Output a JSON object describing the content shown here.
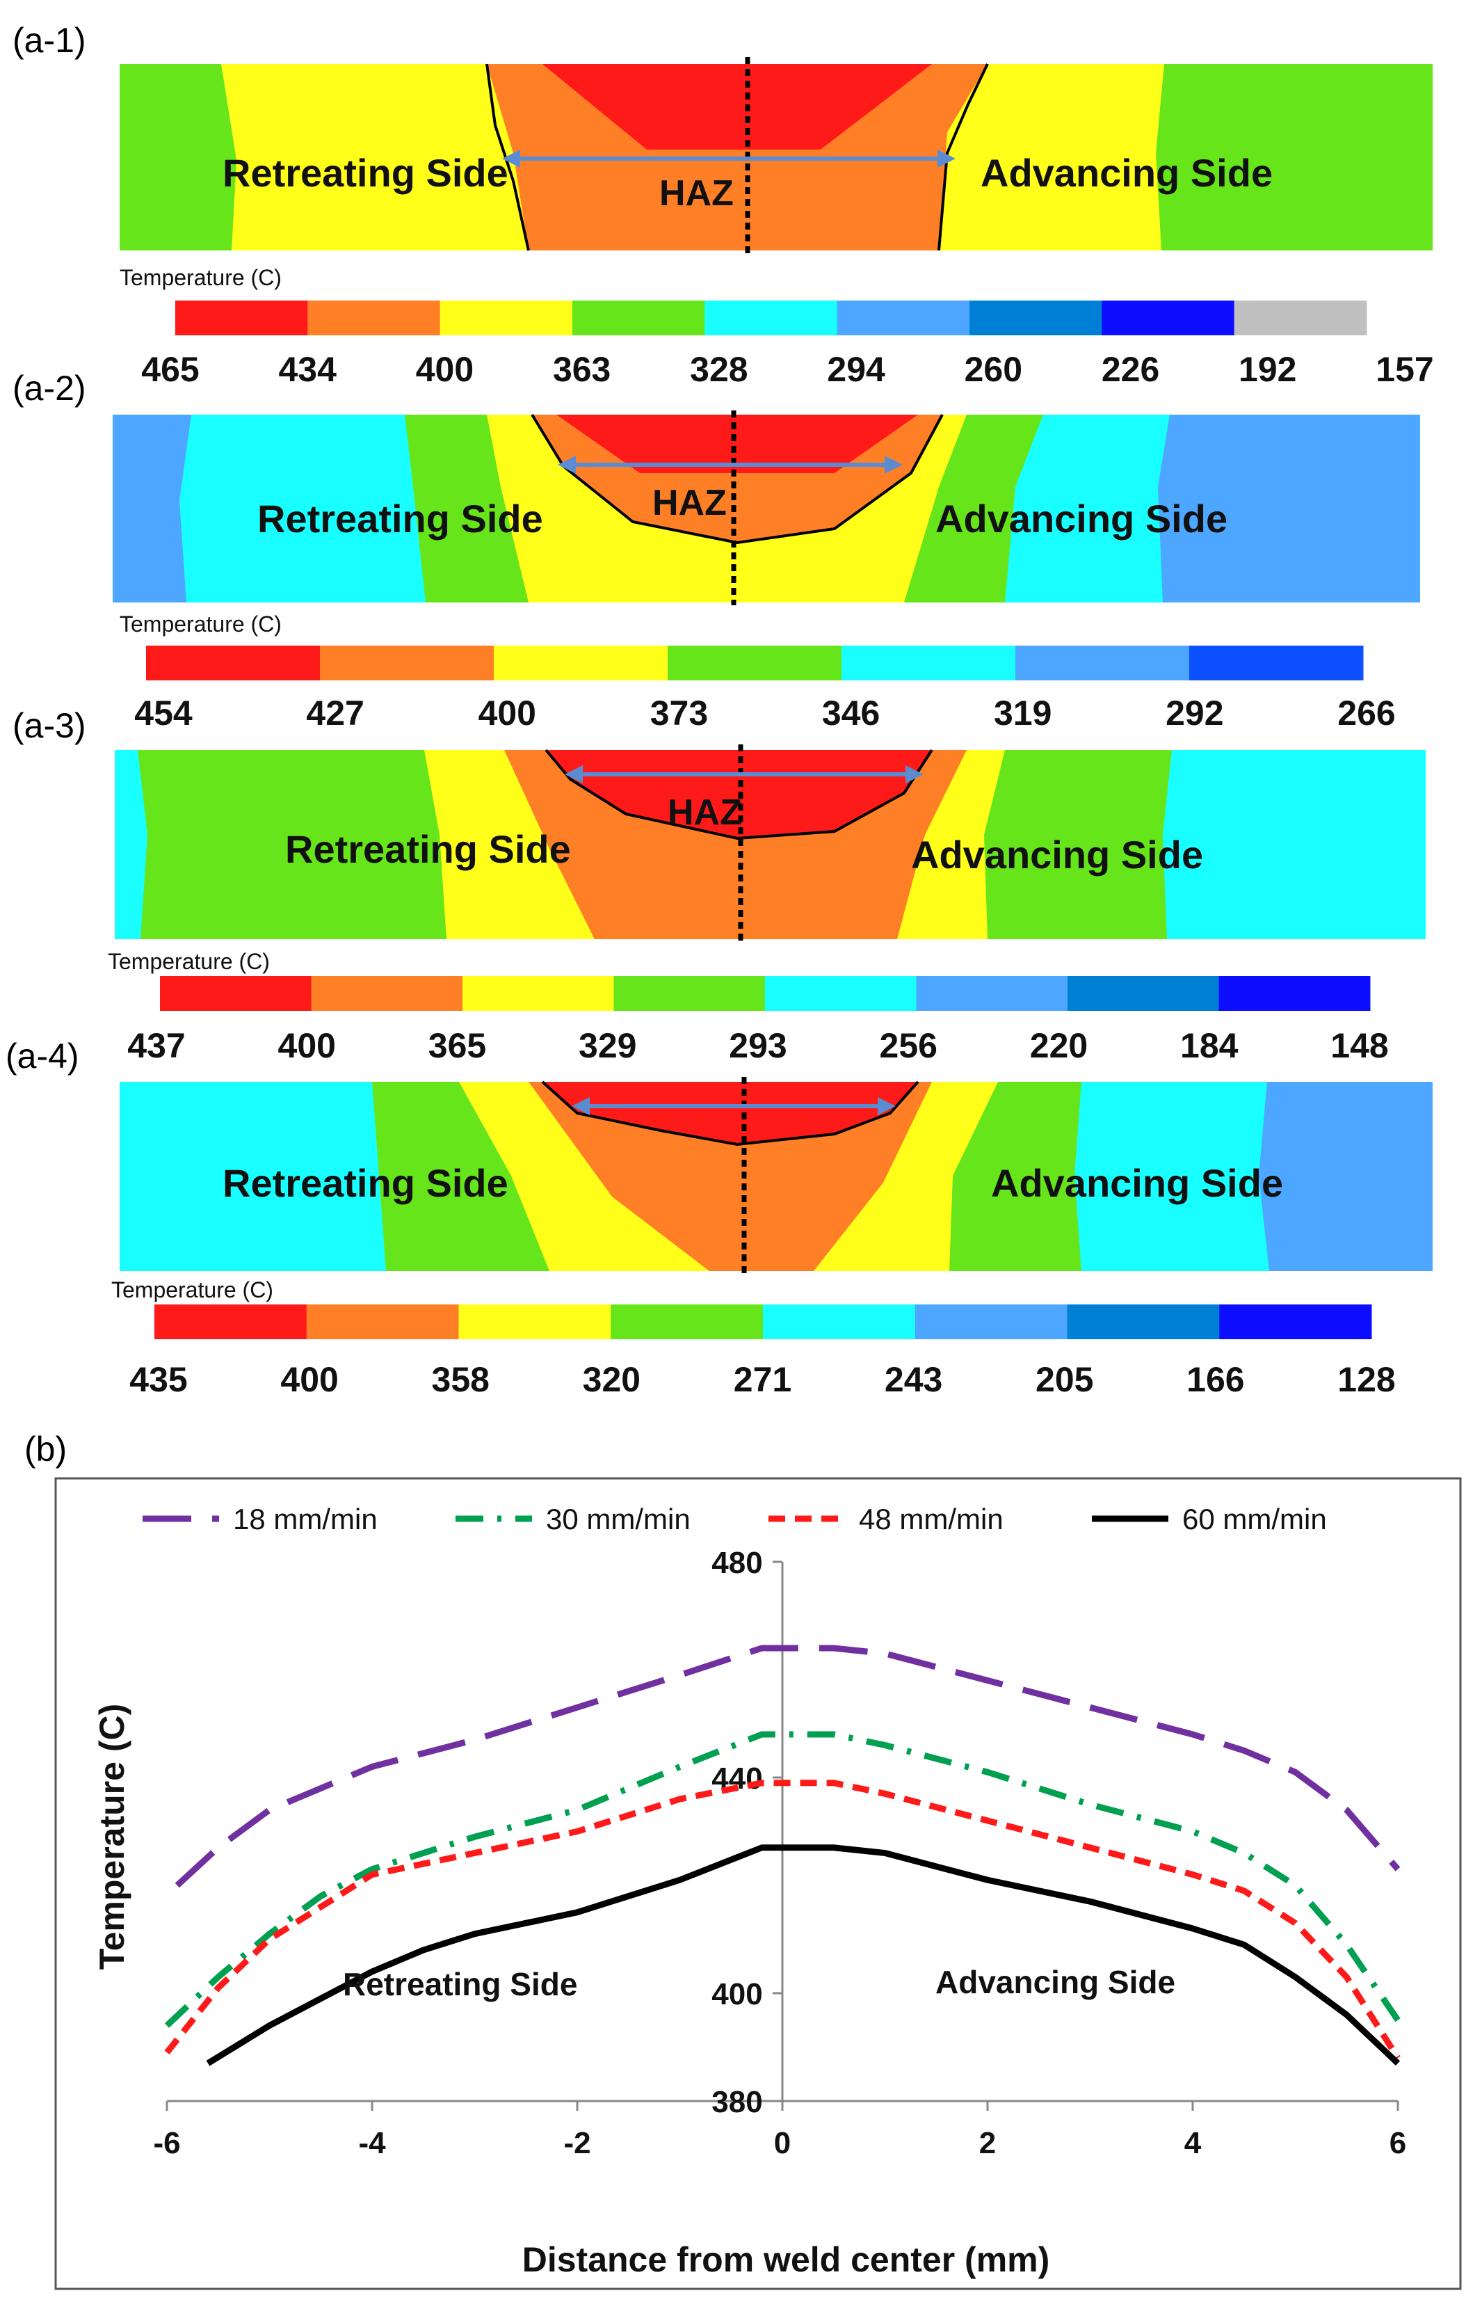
{
  "panel_labels": {
    "a1": "(a-1)",
    "a2": "(a-2)",
    "a3": "(a-3)",
    "a4": "(a-4)",
    "b": "(b)"
  },
  "contour_panels": [
    {
      "id": "a-1",
      "retreating_label": "Retreating Side",
      "advancing_label": "Advancing Side",
      "haz_label": "HAZ",
      "temperature_label": "Temperature (C)",
      "scale_values": [
        "465",
        "434",
        "400",
        "363",
        "328",
        "294",
        "260",
        "226",
        "192",
        "157"
      ],
      "scale_colors": [
        "#ff1a1a",
        "#ff7f27",
        "#ffff1a",
        "#66e61a",
        "#19ffff",
        "#4da6ff",
        "#0080d5",
        "#0d0dff",
        "#c0c0c0"
      ]
    },
    {
      "id": "a-2",
      "retreating_label": "Retreating Side",
      "advancing_label": "Advancing Side",
      "haz_label": "HAZ",
      "temperature_label": "Temperature (C)",
      "scale_values": [
        "454",
        "427",
        "400",
        "373",
        "346",
        "319",
        "292",
        "266"
      ],
      "scale_colors": [
        "#ff1a1a",
        "#ff7f27",
        "#ffff1a",
        "#66e61a",
        "#19ffff",
        "#4da6ff",
        "#0d50ff"
      ]
    },
    {
      "id": "a-3",
      "retreating_label": "Retreating Side",
      "advancing_label": "Advancing Side",
      "haz_label": "HAZ",
      "temperature_label": "Temperature (C)",
      "scale_values": [
        "437",
        "400",
        "365",
        "329",
        "293",
        "256",
        "220",
        "184",
        "148"
      ],
      "scale_colors": [
        "#ff1a1a",
        "#ff7f27",
        "#ffff1a",
        "#66e61a",
        "#19ffff",
        "#4da6ff",
        "#0080d5",
        "#0d0dff"
      ]
    },
    {
      "id": "a-4",
      "retreating_label": "Retreating Side",
      "advancing_label": "Advancing Side",
      "temperature_label": "Temperature (C)",
      "scale_values": [
        "435",
        "400",
        "358",
        "320",
        "271",
        "243",
        "205",
        "166",
        "128"
      ],
      "scale_colors": [
        "#ff1a1a",
        "#ff7f27",
        "#ffff1a",
        "#66e61a",
        "#19ffff",
        "#4da6ff",
        "#0080d5",
        "#0d0dff"
      ]
    }
  ],
  "colors": {
    "red": "#ff1a1a",
    "orange": "#ff7f27",
    "yellow": "#ffff1a",
    "green": "#66e61a",
    "cyan": "#19ffff",
    "light_blue": "#4da6ff",
    "arrow": "#5b8bd0",
    "series_18": "#7030a0",
    "series_30": "#00a050",
    "series_48": "#ff1a1a",
    "series_60": "#000000"
  },
  "chart_data": {
    "type": "line",
    "xlabel": "Distance from weld center (mm)",
    "ylabel": "Temperature (C)",
    "xlim": [
      -6,
      6
    ],
    "ylim": [
      380,
      480
    ],
    "xticks": [
      -6,
      -4,
      -2,
      0,
      2,
      4,
      6
    ],
    "yticks": [
      380,
      400,
      440,
      480
    ],
    "legend_position": "top",
    "annotations": {
      "left": "Retreating Side",
      "right": "Advancing Side"
    },
    "series": [
      {
        "name": "18 mm/min",
        "style": "long-dash",
        "color": "#7030a0",
        "x": [
          -5.9,
          -5.5,
          -5,
          -4.5,
          -4,
          -3,
          -2,
          -1,
          -0.2,
          0.5,
          1,
          2,
          3,
          4,
          4.5,
          5,
          5.5,
          6
        ],
        "y": [
          420,
          427,
          434,
          438,
          442,
          447,
          453,
          459,
          464,
          464,
          463,
          458,
          453,
          448,
          445,
          441,
          434,
          423
        ]
      },
      {
        "name": "30 mm/min",
        "style": "dash-dot",
        "color": "#00a050",
        "x": [
          -6,
          -5.5,
          -5,
          -4.5,
          -4,
          -3,
          -2,
          -1,
          -0.2,
          0.5,
          1,
          2,
          3,
          4,
          4.5,
          5,
          5.5,
          6
        ],
        "y": [
          394,
          403,
          411,
          418,
          423,
          429,
          434,
          442,
          448,
          448,
          446,
          441,
          435,
          430,
          426,
          420,
          409,
          395
        ]
      },
      {
        "name": "48 mm/min",
        "style": "short-dash",
        "color": "#ff1a1a",
        "x": [
          -6,
          -5.5,
          -5,
          -4.5,
          -4,
          -3,
          -2,
          -1,
          -0.2,
          0.5,
          1,
          2,
          3,
          4,
          4.5,
          5,
          5.5,
          6
        ],
        "y": [
          389,
          401,
          410,
          416,
          422,
          426,
          430,
          436,
          439,
          439,
          437,
          432,
          427,
          422,
          419,
          413,
          403,
          388
        ]
      },
      {
        "name": "60 mm/min",
        "style": "solid",
        "color": "#000000",
        "x": [
          -5.6,
          -5,
          -4.5,
          -4,
          -3.5,
          -3,
          -2,
          -1,
          -0.2,
          0.5,
          1,
          2,
          3,
          4,
          4.5,
          5,
          5.5,
          6
        ],
        "y": [
          387,
          394,
          399,
          404,
          408,
          411,
          415,
          421,
          427,
          427,
          426,
          421,
          417,
          412,
          409,
          403,
          396,
          387
        ]
      }
    ]
  }
}
